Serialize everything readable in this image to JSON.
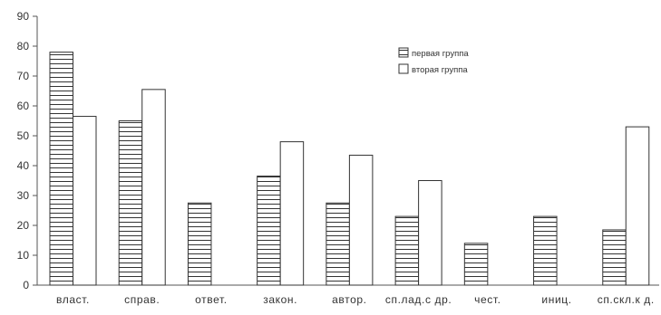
{
  "chart_data": {
    "type": "bar",
    "categories": [
      "власт.",
      "справ.",
      "ответ.",
      "закон.",
      "автор.",
      "сп.лад.с др.",
      "чест.",
      "иниц.",
      "сп.скл.к д."
    ],
    "series": [
      {
        "name": "первая группа",
        "values": [
          78,
          55,
          27.5,
          36.5,
          27.5,
          23,
          14,
          23,
          18.5
        ],
        "pattern": "horizontal-hatch"
      },
      {
        "name": "вторая группа",
        "values": [
          56.5,
          65.5,
          0,
          48,
          43.5,
          35,
          0,
          0,
          53
        ],
        "pattern": "empty"
      }
    ],
    "title": "",
    "xlabel": "",
    "ylabel": "",
    "ylim": [
      0,
      90
    ],
    "yticks": [
      0,
      10,
      20,
      30,
      40,
      50,
      60,
      70,
      80,
      90
    ],
    "grid": false,
    "legend": "top-right-inside",
    "colors": {
      "stroke": "#333333",
      "fill": "#ffffff",
      "hatch": "#333333",
      "axis": "#555555",
      "text": "#333333"
    }
  }
}
